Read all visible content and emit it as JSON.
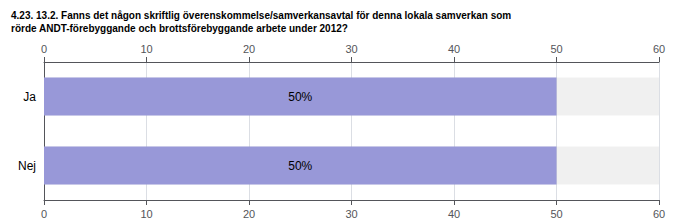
{
  "chart_data": {
    "type": "bar",
    "title": "4.23. 13.2. Fanns det någon skriftlig överenskommelse/samverkansavtal för denna lokala samverkan som\nrörde ANDT-förebyggande och brottsförebyggande arbete under 2012?",
    "orientation": "horizontal",
    "categories": [
      "Ja",
      "Nej"
    ],
    "values": [
      50,
      50
    ],
    "value_labels": [
      "50%",
      "50%"
    ],
    "data_labels": true,
    "color": "#9898d8",
    "xlim": [
      0,
      60
    ],
    "xticks": [
      0,
      10,
      20,
      30,
      40,
      50,
      60
    ],
    "grid": true
  }
}
